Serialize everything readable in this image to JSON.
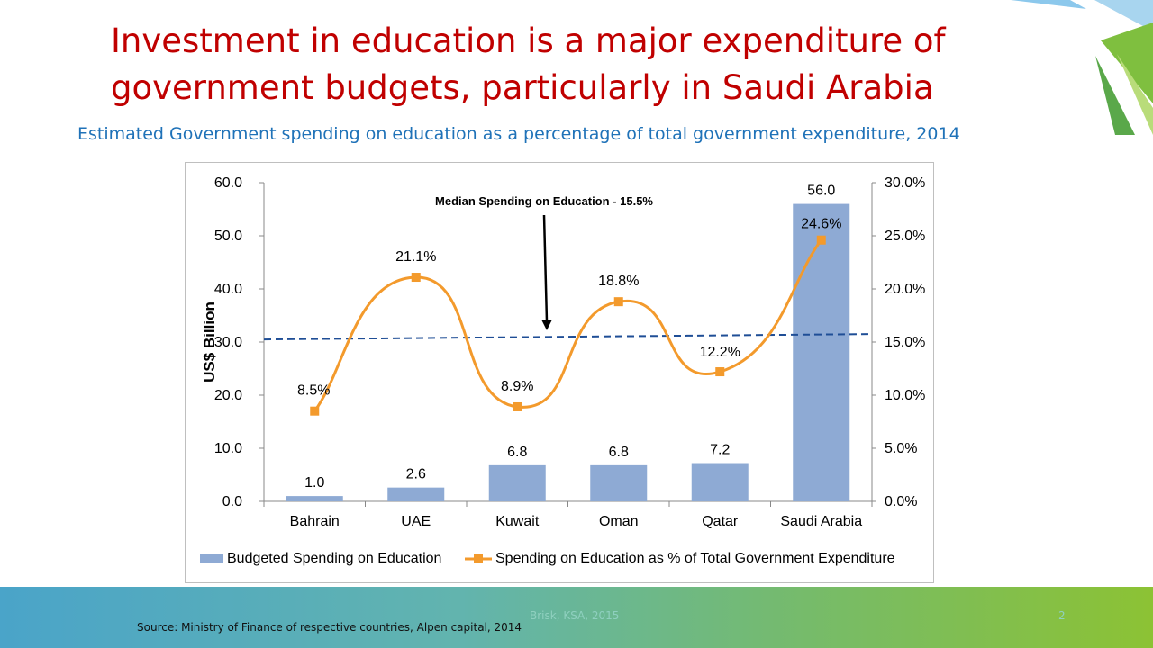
{
  "slide": {
    "title_line1": "Investment in education is a major expenditure of",
    "title_line2": "government budgets, particularly in Saudi Arabia",
    "subtitle": "Estimated Government spending on education as a percentage of total government expenditure, 2014",
    "source": "Source: Ministry of Finance of respective countries, Alpen capital, 2014",
    "footer_text": "Brisk, KSA, 2015",
    "page_number": "2"
  },
  "colors": {
    "title": "#c00000",
    "subtitle": "#1f72b8",
    "bar": "#8eaad4",
    "line": "#f39a2c",
    "median": "#1f4e96"
  },
  "chart_data": {
    "type": "bar",
    "categories": [
      "Bahrain",
      "UAE",
      "Kuwait",
      "Oman",
      "Qatar",
      "Saudi Arabia"
    ],
    "series": [
      {
        "name": "Budgeted Spending on Education",
        "type": "bar",
        "axis": "left",
        "values": [
          1.0,
          2.6,
          6.8,
          6.8,
          7.2,
          56.0
        ],
        "labels": [
          "1.0",
          "2.6",
          "6.8",
          "6.8",
          "7.2",
          "56.0"
        ]
      },
      {
        "name": "Spending on Education as % of Total Government Expenditure",
        "type": "line",
        "axis": "right",
        "values": [
          8.5,
          21.1,
          8.9,
          18.8,
          12.2,
          24.6
        ],
        "labels": [
          "8.5%",
          "21.1%",
          "8.9%",
          "18.8%",
          "12.2%",
          "24.6%"
        ]
      }
    ],
    "ylabel": "US$ Billion",
    "ylim": [
      0,
      60
    ],
    "y_ticks": [
      "0.0",
      "10.0",
      "20.0",
      "30.0",
      "40.0",
      "50.0",
      "60.0"
    ],
    "y2lim": [
      0,
      30
    ],
    "y2_ticks": [
      "0.0%",
      "5.0%",
      "10.0%",
      "15.0%",
      "20.0%",
      "25.0%",
      "30.0%"
    ],
    "median": {
      "value": 15.5,
      "label": "Median Spending on Education - 15.5%"
    },
    "legend": {
      "position": "bottom"
    },
    "grid": false
  }
}
